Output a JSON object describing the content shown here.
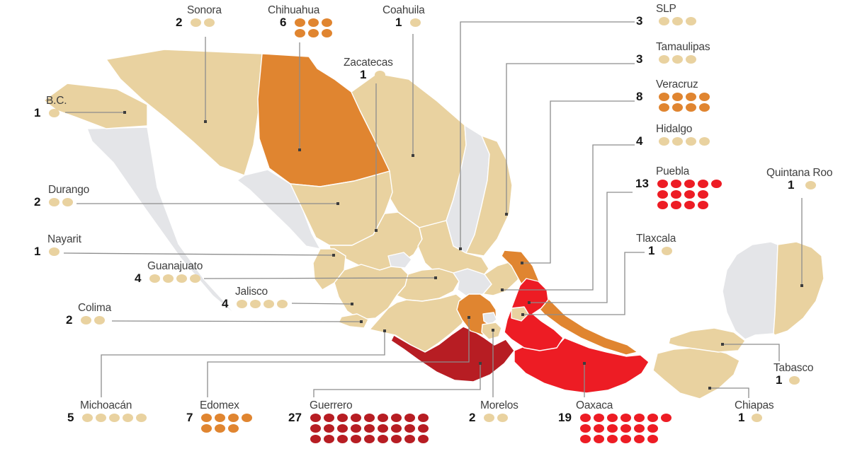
{
  "palette": {
    "tan": "#e9d2a0",
    "orange": "#e08530",
    "red": "#ed1c24",
    "dark_red": "#b71d23",
    "no_data": "#e4e5e8",
    "map_border": "#ffffff",
    "leader_line": "#8d8d8d",
    "label_text": "#3f3f3f",
    "number_text": "#161616"
  },
  "states": [
    {
      "id": "bc",
      "label": "B.C.",
      "count": 1,
      "level": "tan"
    },
    {
      "id": "sonora",
      "label": "Sonora",
      "count": 2,
      "level": "tan"
    },
    {
      "id": "chihuahua",
      "label": "Chihuahua",
      "count": 6,
      "level": "orange"
    },
    {
      "id": "coahuila",
      "label": "Coahuila",
      "count": 1,
      "level": "tan"
    },
    {
      "id": "zacatecas",
      "label": "Zacatecas",
      "count": 1,
      "level": "tan"
    },
    {
      "id": "slp",
      "label": "SLP",
      "count": 3,
      "level": "tan"
    },
    {
      "id": "tamaulipas",
      "label": "Tamaulipas",
      "count": 3,
      "level": "tan"
    },
    {
      "id": "veracruz",
      "label": "Veracruz",
      "count": 8,
      "level": "orange"
    },
    {
      "id": "hidalgo",
      "label": "Hidalgo",
      "count": 4,
      "level": "tan"
    },
    {
      "id": "puebla",
      "label": "Puebla",
      "count": 13,
      "level": "red"
    },
    {
      "id": "quintana-roo",
      "label": "Quintana Roo",
      "count": 1,
      "level": "tan"
    },
    {
      "id": "tlaxcala",
      "label": "Tlaxcala",
      "count": 1,
      "level": "tan"
    },
    {
      "id": "durango",
      "label": "Durango",
      "count": 2,
      "level": "tan"
    },
    {
      "id": "nayarit",
      "label": "Nayarit",
      "count": 1,
      "level": "tan"
    },
    {
      "id": "guanajuato",
      "label": "Guanajuato",
      "count": 4,
      "level": "tan"
    },
    {
      "id": "jalisco",
      "label": "Jalisco",
      "count": 4,
      "level": "tan"
    },
    {
      "id": "colima",
      "label": "Colima",
      "count": 2,
      "level": "tan"
    },
    {
      "id": "michoacan",
      "label": "Michoacán",
      "count": 5,
      "level": "tan"
    },
    {
      "id": "edomex",
      "label": "Edomex",
      "count": 7,
      "level": "orange"
    },
    {
      "id": "guerrero",
      "label": "Guerrero",
      "count": 27,
      "level": "dark_red"
    },
    {
      "id": "morelos",
      "label": "Morelos",
      "count": 2,
      "level": "tan"
    },
    {
      "id": "oaxaca",
      "label": "Oaxaca",
      "count": 19,
      "level": "red"
    },
    {
      "id": "chiapas",
      "label": "Chiapas",
      "count": 1,
      "level": "tan"
    },
    {
      "id": "tabasco",
      "label": "Tabasco",
      "count": 1,
      "level": "tan"
    }
  ]
}
